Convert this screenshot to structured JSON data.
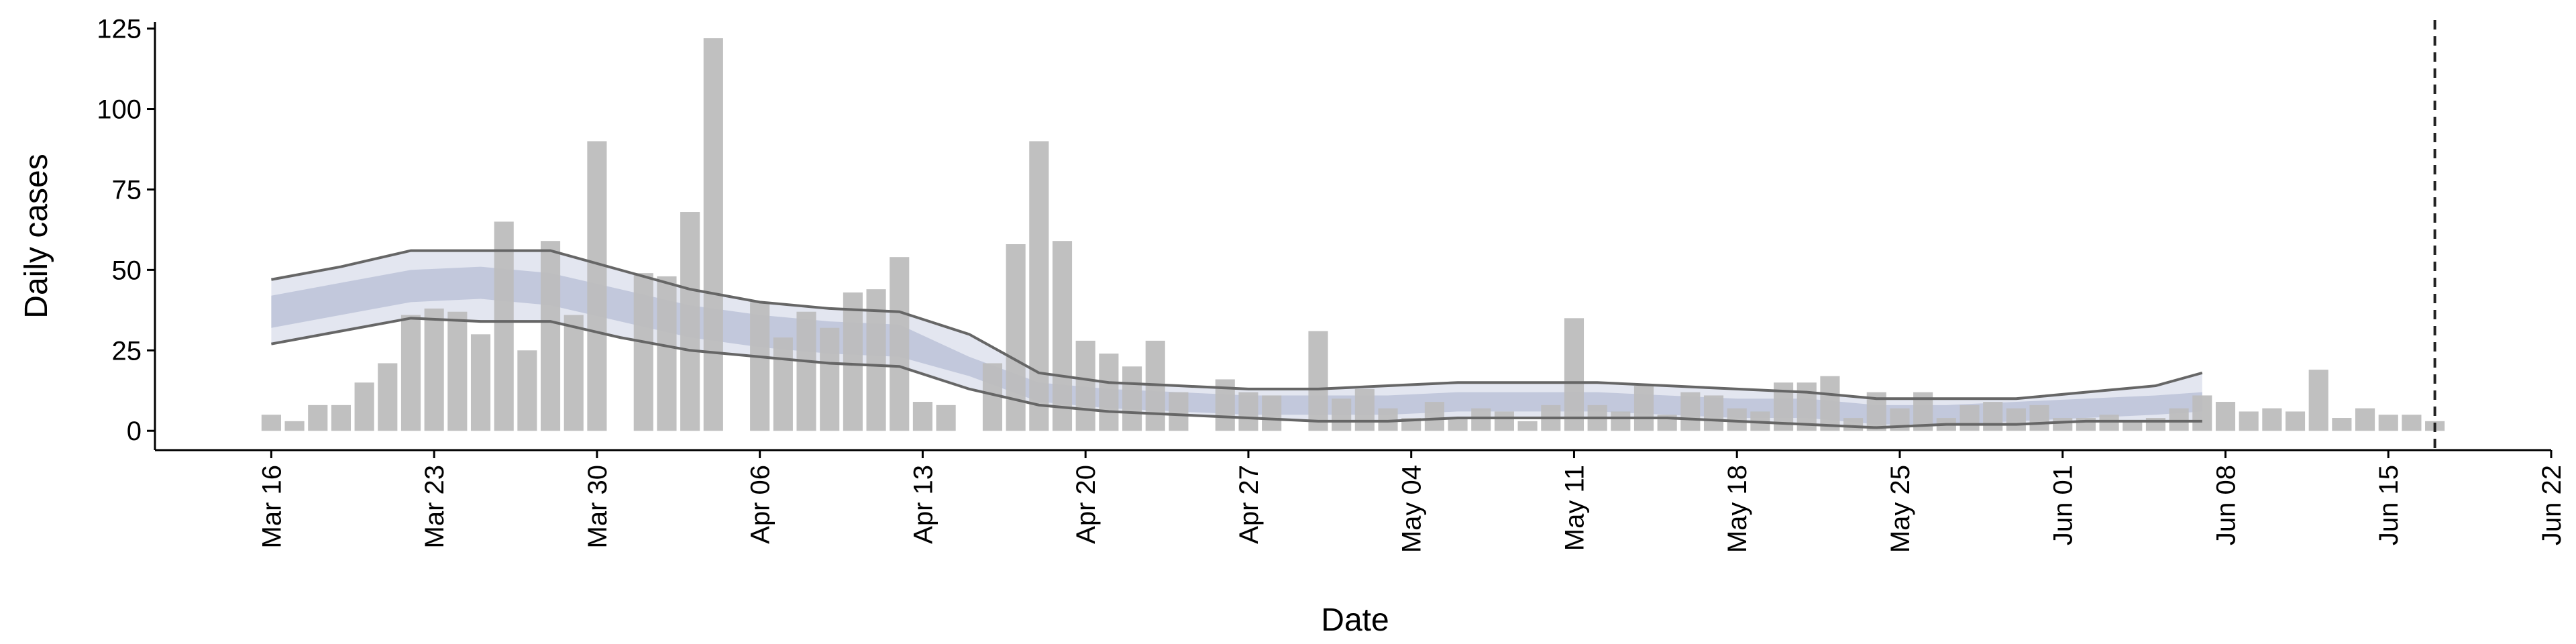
{
  "chart_data": {
    "type": "bar",
    "x_label": "Date",
    "y_label": "Daily cases",
    "x": [
      "Mar 16",
      "Mar 17",
      "Mar 18",
      "Mar 19",
      "Mar 20",
      "Mar 21",
      "Mar 22",
      "Mar 23",
      "Mar 24",
      "Mar 25",
      "Mar 26",
      "Mar 27",
      "Mar 28",
      "Mar 29",
      "Mar 30",
      "Mar 31",
      "Apr 01",
      "Apr 02",
      "Apr 03",
      "Apr 04",
      "Apr 05",
      "Apr 06",
      "Apr 07",
      "Apr 08",
      "Apr 09",
      "Apr 10",
      "Apr 11",
      "Apr 12",
      "Apr 13",
      "Apr 14",
      "Apr 15",
      "Apr 16",
      "Apr 17",
      "Apr 18",
      "Apr 19",
      "Apr 20",
      "Apr 21",
      "Apr 22",
      "Apr 23",
      "Apr 24",
      "Apr 25",
      "Apr 26",
      "Apr 27",
      "Apr 28",
      "Apr 29",
      "Apr 30",
      "May 01",
      "May 02",
      "May 03",
      "May 04",
      "May 05",
      "May 06",
      "May 07",
      "May 08",
      "May 09",
      "May 10",
      "May 11",
      "May 12",
      "May 13",
      "May 14",
      "May 15",
      "May 16",
      "May 17",
      "May 18",
      "May 19",
      "May 20",
      "May 21",
      "May 22",
      "May 23",
      "May 24",
      "May 25",
      "May 26",
      "May 27",
      "May 28",
      "May 29",
      "May 30",
      "May 31",
      "Jun 01",
      "Jun 02",
      "Jun 03",
      "Jun 04",
      "Jun 05",
      "Jun 06",
      "Jun 07",
      "Jun 08",
      "Jun 09",
      "Jun 10",
      "Jun 11",
      "Jun 12",
      "Jun 13",
      "Jun 14",
      "Jun 15",
      "Jun 16",
      "Jun 17"
    ],
    "values": [
      5,
      3,
      8,
      8,
      15,
      21,
      36,
      38,
      37,
      30,
      65,
      25,
      59,
      36,
      90,
      0,
      49,
      48,
      68,
      122,
      0,
      40,
      29,
      37,
      32,
      43,
      44,
      54,
      9,
      8,
      0,
      21,
      58,
      90,
      59,
      28,
      24,
      20,
      28,
      12,
      0,
      16,
      12,
      11,
      0,
      31,
      10,
      13,
      7,
      4,
      9,
      4,
      7,
      6,
      3,
      8,
      35,
      8,
      6,
      14,
      5,
      12,
      11,
      7,
      6,
      15,
      15,
      17,
      4,
      12,
      7,
      12,
      4,
      8,
      9,
      7,
      8,
      4,
      4,
      5,
      3,
      4,
      7,
      11,
      9,
      6,
      7,
      6,
      19,
      4,
      7,
      5,
      5,
      3
    ],
    "color": "#bdbdbd",
    "band_x": [
      "Mar 16",
      "Mar 19",
      "Mar 22",
      "Mar 25",
      "Mar 28",
      "Mar 31",
      "Apr 03",
      "Apr 06",
      "Apr 09",
      "Apr 12",
      "Apr 15",
      "Apr 18",
      "Apr 21",
      "Apr 24",
      "Apr 27",
      "Apr 30",
      "May 03",
      "May 06",
      "May 09",
      "May 12",
      "May 15",
      "May 18",
      "May 21",
      "May 24",
      "May 27",
      "May 30",
      "Jun 02",
      "Jun 05",
      "Jun 07"
    ],
    "lines": [
      {
        "color": "#666666",
        "values": [
          47,
          51,
          56,
          56,
          56,
          50,
          44,
          40,
          38,
          37,
          30,
          18,
          15,
          14,
          13,
          13,
          14,
          15,
          15,
          15,
          14,
          13,
          12,
          10,
          10,
          10,
          12,
          14,
          18
        ]
      },
      {
        "color": "#666666",
        "values": [
          27,
          31,
          35,
          34,
          34,
          29,
          25,
          23,
          21,
          20,
          13,
          8,
          6,
          5,
          4,
          3,
          3,
          4,
          4,
          4,
          4,
          3,
          2,
          1,
          2,
          2,
          3,
          3,
          3
        ]
      }
    ],
    "lines_fill": "#e3e6f0",
    "bands": [
      {
        "color": "#b9c1d7",
        "low": [
          32,
          36,
          40,
          41,
          39,
          34,
          29,
          26,
          24,
          23,
          17,
          9,
          7,
          6,
          5,
          5,
          5,
          6,
          6,
          6,
          5,
          4,
          4,
          2,
          2,
          3,
          4,
          5,
          6
        ],
        "high": [
          42,
          46,
          50,
          51,
          49,
          44,
          39,
          36,
          34,
          33,
          23,
          15,
          13,
          12,
          11,
          11,
          11,
          12,
          12,
          12,
          11,
          10,
          10,
          8,
          8,
          9,
          10,
          11,
          12
        ]
      }
    ],
    "vline": "Jun 17",
    "xlim": [
      "Mar 11",
      "Jun 22"
    ],
    "xticks": [
      "Mar 16",
      "Mar 23",
      "Mar 30",
      "Apr 06",
      "Apr 13",
      "Apr 20",
      "Apr 27",
      "May 04",
      "May 11",
      "May 18",
      "May 25",
      "Jun 01",
      "Jun 08",
      "Jun 15",
      "Jun 22"
    ],
    "ylim": [
      -6,
      127
    ],
    "yticks": [
      0,
      25,
      50,
      75,
      100,
      125
    ]
  }
}
